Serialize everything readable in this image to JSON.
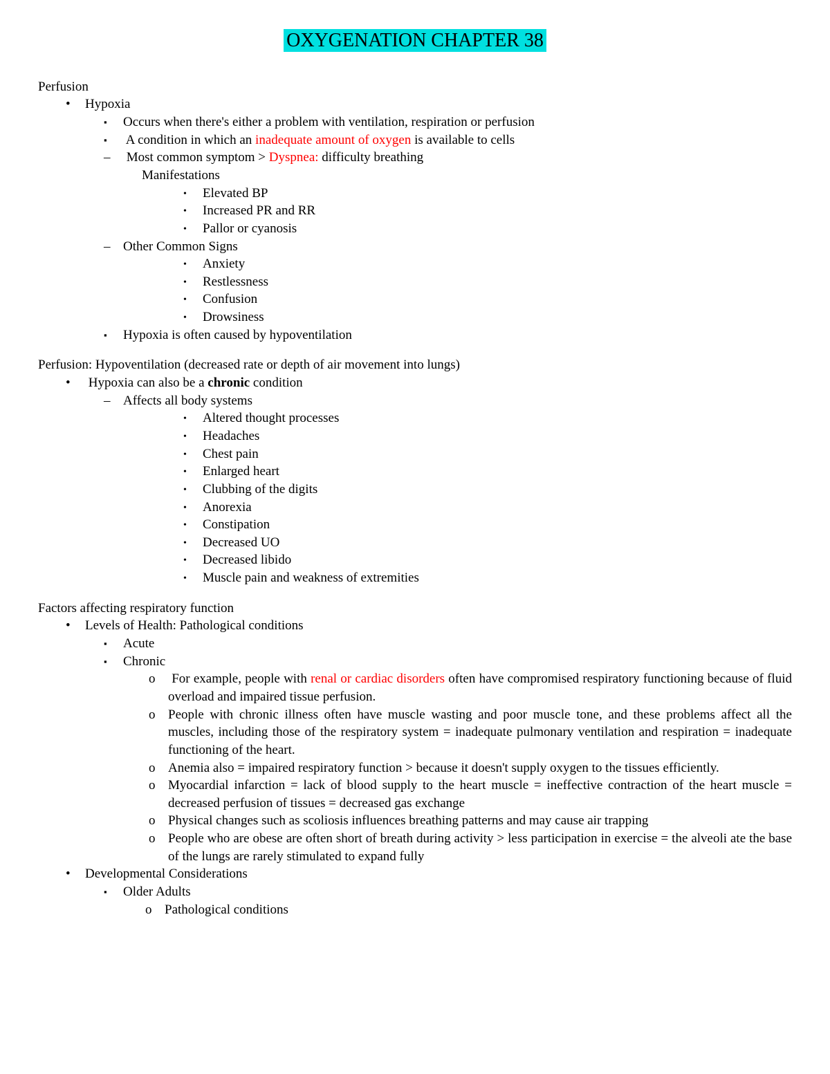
{
  "title": "OXYGENATION CHAPTER 38",
  "section1": {
    "heading": "Perfusion",
    "hypoxia": "Hypoxia",
    "occurs": "Occurs when there's either a problem with ventilation, respiration or perfusion",
    "condition_pre": "A condition in which an ",
    "condition_red": "inadequate amount of oxygen",
    "condition_post": " is available to cells",
    "symptom_pre": "Most common symptom > ",
    "symptom_red": "Dyspnea:",
    "symptom_post": " difficulty breathing",
    "manifestations": "Manifestations",
    "m1": "Elevated BP",
    "m2": "Increased PR and RR",
    "m3": "Pallor or cyanosis",
    "other_signs": "Other Common Signs",
    "s1": "Anxiety",
    "s2": "Restlessness",
    "s3": "Confusion",
    "s4": "Drowsiness",
    "caused": "Hypoxia is often caused by hypoventilation"
  },
  "section2": {
    "heading": "Perfusion: Hypoventilation (decreased rate or depth of air movement into lungs)",
    "chronic_pre": "Hypoxia can also be a ",
    "chronic_bold": "chronic",
    "chronic_post": " condition",
    "affects": "Affects all body systems",
    "b1": "Altered thought processes",
    "b2": "Headaches",
    "b3": "Chest pain",
    "b4": "Enlarged heart",
    "b5": "Clubbing of the digits",
    "b6": "Anorexia",
    "b7": "Constipation",
    "b8": "Decreased UO",
    "b9": "Decreased libido",
    "b10": "Muscle pain and weakness of extremities"
  },
  "section3": {
    "heading": "Factors affecting respiratory function",
    "levels": "Levels of Health: Pathological conditions",
    "acute": "Acute",
    "chronic": "Chronic",
    "c1_pre": "For example, people with ",
    "c1_red": "renal or cardiac disorders",
    "c1_post": " often have compromised respiratory functioning because of fluid overload and impaired tissue perfusion.",
    "c2": "People with chronic illness often have muscle wasting and poor muscle tone, and these problems affect all the muscles, including those of the respiratory system = inadequate pulmonary ventilation and respiration = inadequate functioning of the heart.",
    "c3": "Anemia also = impaired respiratory function > because it doesn't supply oxygen to the tissues efficiently.",
    "c4": "Myocardial infarction = lack of blood supply to the heart muscle = ineffective contraction of the heart muscle = decreased perfusion of tissues = decreased gas exchange",
    "c5": "Physical changes such as scoliosis influences breathing patterns and may cause air trapping",
    "c6": "People who are obese are often short of breath during activity > less participation in exercise = the alveoli ate the base of the lungs are rarely stimulated to expand fully",
    "dev": "Developmental Considerations",
    "older": "Older Adults",
    "path": "Pathological conditions"
  },
  "colors": {
    "highlight": "#00e0e0",
    "red": "#ff0000",
    "text": "#000000",
    "background": "#ffffff"
  }
}
